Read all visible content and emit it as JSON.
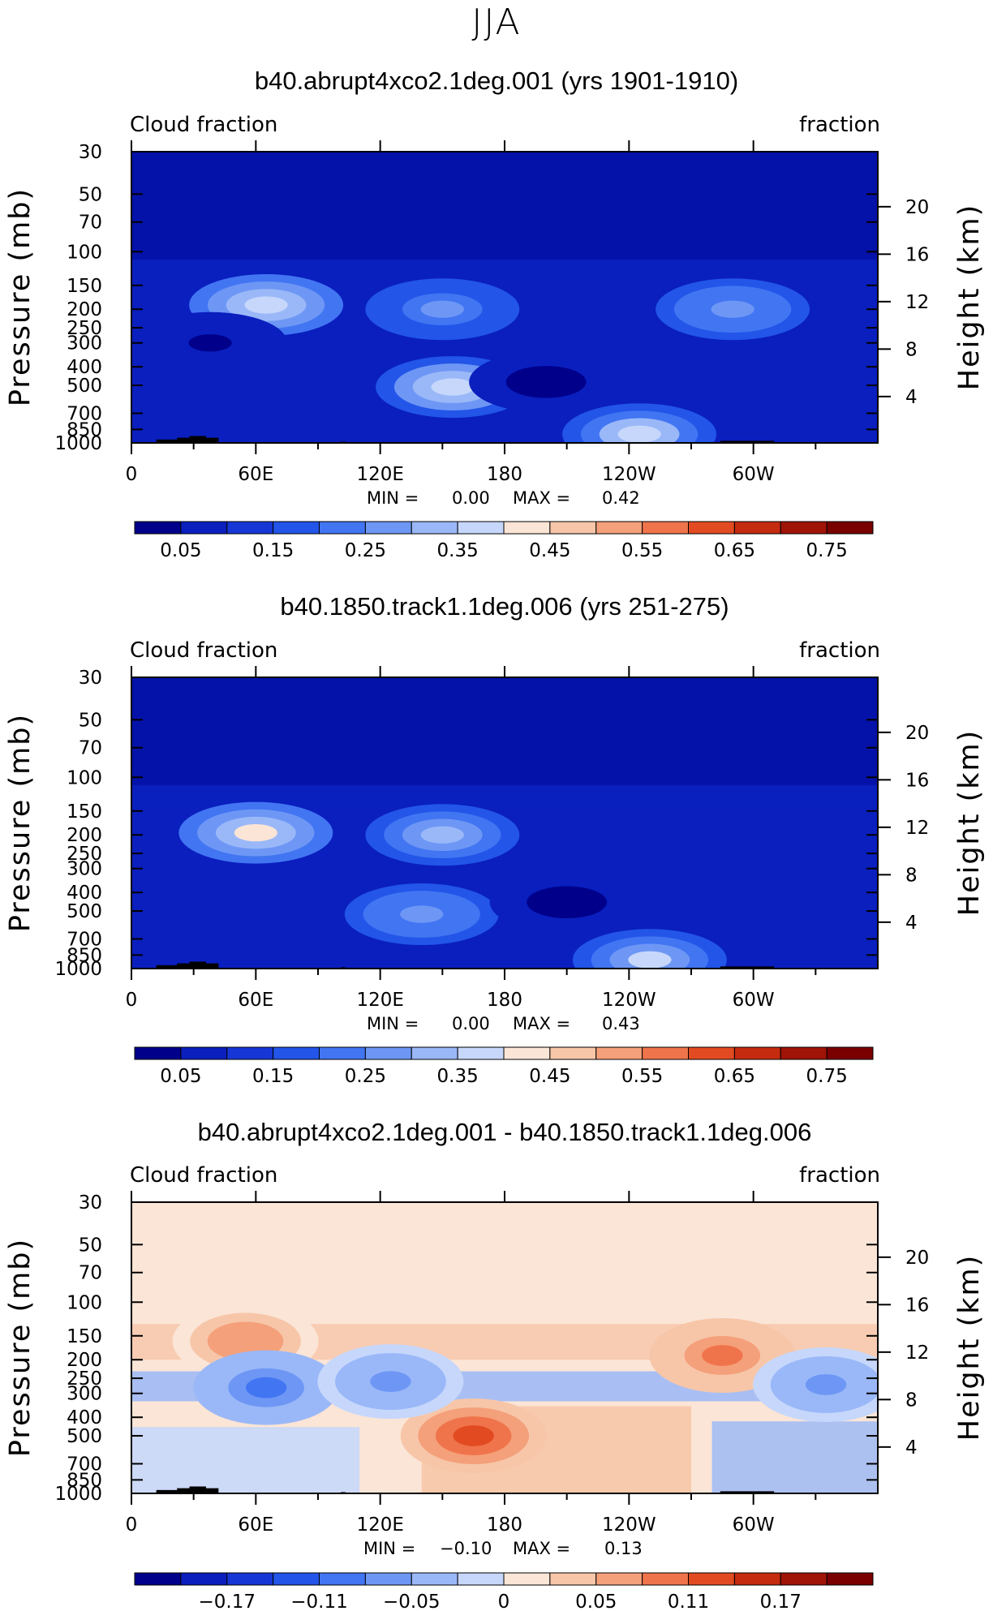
{
  "figure": {
    "supertitle": "JJA",
    "colors": {
      "abs_bands": [
        "#00008B",
        "#0A1FBE",
        "#1637D6",
        "#2255E8",
        "#4275F2",
        "#6E97F5",
        "#9AB8F8",
        "#C6D7FB",
        "#FBE5D6",
        "#F7C6A9",
        "#F4A07A",
        "#F0744B",
        "#E24B22",
        "#C52B0F",
        "#A01407",
        "#7A0000"
      ],
      "diff_bands": [
        "#00008B",
        "#0A1FBE",
        "#1637D6",
        "#2255E8",
        "#4275F2",
        "#6E97F5",
        "#9AB8F8",
        "#C6D7FB",
        "#FBE5D6",
        "#F7C6A9",
        "#F4A07A",
        "#F0744B",
        "#E24B22",
        "#C52B0F",
        "#A01407",
        "#7A0000"
      ],
      "topography": "#000000"
    }
  },
  "chart_data": [
    {
      "type": "heatmap",
      "title": "b40.abrupt4xco2.1deg.001 (yrs 1901-1910)",
      "left_label": "Cloud fraction",
      "right_label": "fraction",
      "ylabel": "Pressure (mb)",
      "ylabel_right": "Height (km)",
      "x_ticks": [
        "0",
        "60E",
        "120E",
        "180",
        "120W",
        "60W"
      ],
      "x_tick_values": [
        0,
        60,
        120,
        180,
        240,
        300
      ],
      "xlim": [
        0,
        360
      ],
      "y_ticks": [
        "30",
        "50",
        "70",
        "100",
        "150",
        "200",
        "250",
        "300",
        "400",
        "500",
        "700",
        "850",
        "1000"
      ],
      "y_tick_values": [
        30,
        50,
        70,
        100,
        150,
        200,
        250,
        300,
        400,
        500,
        700,
        850,
        1000
      ],
      "ylim": [
        1000,
        30
      ],
      "y_scale": "log",
      "height_ticks": [
        "20",
        "16",
        "12",
        "8",
        "4"
      ],
      "height_tick_values": [
        20,
        16,
        12,
        8,
        4
      ],
      "min_label": "MIN =",
      "min_value": "0.00",
      "max_label": "MAX =",
      "max_value": "0.42",
      "colorbar_labels": [
        "0.05",
        "0.15",
        "0.25",
        "0.35",
        "0.45",
        "0.55",
        "0.65",
        "0.75"
      ],
      "colorbar_levels": [
        0.05,
        0.1,
        0.15,
        0.2,
        0.25,
        0.3,
        0.35,
        0.4,
        0.45,
        0.5,
        0.55,
        0.6,
        0.65,
        0.7,
        0.75
      ],
      "features": [
        {
          "lon": 65,
          "p": 190,
          "value": 0.4
        },
        {
          "lon": 155,
          "p": 510,
          "value": 0.38
        },
        {
          "lon": 245,
          "p": 900,
          "value": 0.37
        },
        {
          "lon": 290,
          "p": 200,
          "value": 0.3
        },
        {
          "lon": 150,
          "p": 200,
          "value": 0.26
        },
        {
          "lon": 200,
          "p": 480,
          "value": 0.03
        },
        {
          "lon": 38,
          "p": 300,
          "value": 0.04
        }
      ]
    },
    {
      "type": "heatmap",
      "title": "b40.1850.track1.1deg.006 (yrs 251-275)",
      "left_label": "Cloud fraction",
      "right_label": "fraction",
      "ylabel": "Pressure (mb)",
      "ylabel_right": "Height (km)",
      "x_ticks": [
        "0",
        "60E",
        "120E",
        "180",
        "120W",
        "60W"
      ],
      "x_tick_values": [
        0,
        60,
        120,
        180,
        240,
        300
      ],
      "xlim": [
        0,
        360
      ],
      "y_ticks": [
        "30",
        "50",
        "70",
        "100",
        "150",
        "200",
        "250",
        "300",
        "400",
        "500",
        "700",
        "850",
        "1000"
      ],
      "y_tick_values": [
        30,
        50,
        70,
        100,
        150,
        200,
        250,
        300,
        400,
        500,
        700,
        850,
        1000
      ],
      "ylim": [
        1000,
        30
      ],
      "y_scale": "log",
      "height_ticks": [
        "20",
        "16",
        "12",
        "8",
        "4"
      ],
      "height_tick_values": [
        20,
        16,
        12,
        8,
        4
      ],
      "min_label": "MIN =",
      "min_value": "0.00",
      "max_label": "MAX =",
      "max_value": "0.43",
      "colorbar_labels": [
        "0.05",
        "0.15",
        "0.25",
        "0.35",
        "0.45",
        "0.55",
        "0.65",
        "0.75"
      ],
      "colorbar_levels": [
        0.05,
        0.1,
        0.15,
        0.2,
        0.25,
        0.3,
        0.35,
        0.4,
        0.45,
        0.5,
        0.55,
        0.6,
        0.65,
        0.7,
        0.75
      ],
      "features": [
        {
          "lon": 60,
          "p": 195,
          "value": 0.42
        },
        {
          "lon": 140,
          "p": 520,
          "value": 0.3
        },
        {
          "lon": 250,
          "p": 900,
          "value": 0.36
        },
        {
          "lon": 150,
          "p": 200,
          "value": 0.33
        },
        {
          "lon": 210,
          "p": 450,
          "value": 0.02
        }
      ]
    },
    {
      "type": "heatmap",
      "title": "b40.abrupt4xco2.1deg.001 - b40.1850.track1.1deg.006",
      "left_label": "Cloud fraction",
      "right_label": "fraction",
      "ylabel": "Pressure (mb)",
      "ylabel_right": "Height (km)",
      "x_ticks": [
        "0",
        "60E",
        "120E",
        "180",
        "120W",
        "60W"
      ],
      "x_tick_values": [
        0,
        60,
        120,
        180,
        240,
        300
      ],
      "xlim": [
        0,
        360
      ],
      "y_ticks": [
        "30",
        "50",
        "70",
        "100",
        "150",
        "200",
        "250",
        "300",
        "400",
        "500",
        "700",
        "850",
        "1000"
      ],
      "y_tick_values": [
        30,
        50,
        70,
        100,
        150,
        200,
        250,
        300,
        400,
        500,
        700,
        850,
        1000
      ],
      "ylim": [
        1000,
        30
      ],
      "y_scale": "log",
      "height_ticks": [
        "20",
        "16",
        "12",
        "8",
        "4"
      ],
      "height_tick_values": [
        20,
        16,
        12,
        8,
        4
      ],
      "min_label": "MIN =",
      "min_value": "−0.10",
      "max_label": "MAX =",
      "max_value": "0.13",
      "colorbar_labels": [
        "−0.17",
        "−0.11",
        "−0.05",
        "0",
        "0.05",
        "0.11",
        "0.17"
      ],
      "colorbar_levels": [
        -0.2,
        -0.17,
        -0.14,
        -0.11,
        -0.08,
        -0.05,
        -0.02,
        0,
        0.02,
        0.05,
        0.08,
        0.11,
        0.14,
        0.17,
        0.2
      ],
      "features": [
        {
          "lon": 165,
          "p": 500,
          "value": 0.13
        },
        {
          "lon": 285,
          "p": 190,
          "value": 0.09
        },
        {
          "lon": 55,
          "p": 160,
          "value": 0.07
        },
        {
          "lon": 65,
          "p": 280,
          "value": -0.08
        },
        {
          "lon": 335,
          "p": 270,
          "value": -0.06
        },
        {
          "lon": 125,
          "p": 260,
          "value": -0.05
        }
      ]
    }
  ]
}
